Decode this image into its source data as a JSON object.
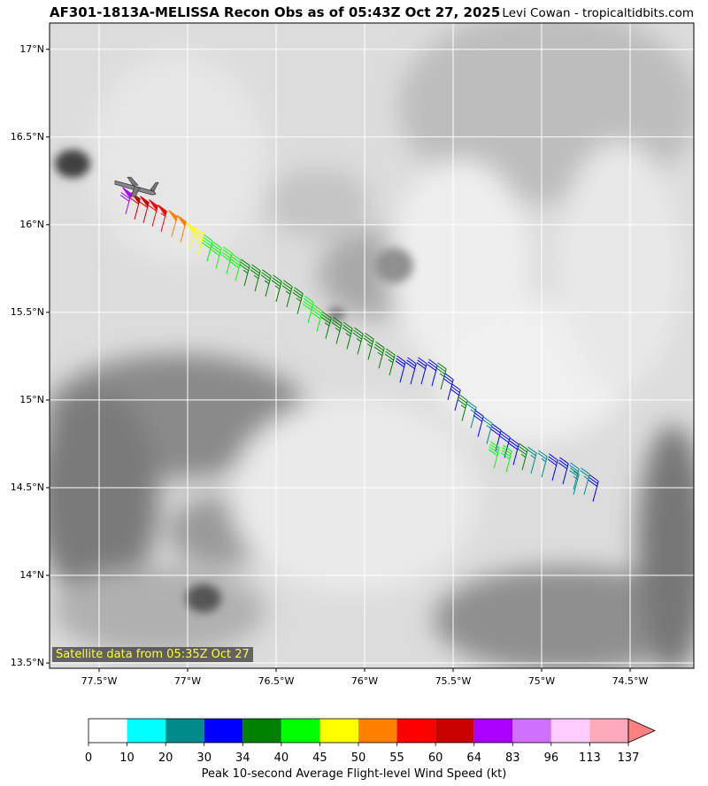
{
  "header": {
    "title": "AF301-1813A-MELISSA Recon Obs as of 05:43Z Oct 27, 2025",
    "credit": "Levi Cowan - tropicaltidbits.com"
  },
  "satellite_note": "Satellite data from 05:35Z Oct 27",
  "map": {
    "lat_range": [
      13.47,
      17.15
    ],
    "lon_range": [
      -77.78,
      -74.14
    ],
    "lat_ticks": [
      {
        "value": 17.0,
        "label": "17°N"
      },
      {
        "value": 16.5,
        "label": "16.5°N"
      },
      {
        "value": 16.0,
        "label": "16°N"
      },
      {
        "value": 15.5,
        "label": "15.5°N"
      },
      {
        "value": 15.0,
        "label": "15°N"
      },
      {
        "value": 14.5,
        "label": "14.5°N"
      },
      {
        "value": 14.0,
        "label": "14°N"
      },
      {
        "value": 13.5,
        "label": "13.5°N"
      }
    ],
    "lon_ticks": [
      {
        "value": -77.5,
        "label": "77.5°W"
      },
      {
        "value": -77.0,
        "label": "77°W"
      },
      {
        "value": -76.5,
        "label": "76.5°W"
      },
      {
        "value": -76.0,
        "label": "76°W"
      },
      {
        "value": -75.5,
        "label": "75.5°W"
      },
      {
        "value": -75.0,
        "label": "75°W"
      },
      {
        "value": -74.5,
        "label": "74.5°W"
      }
    ],
    "aircraft_icon": "airplane-icon",
    "aircraft_position": {
      "lon": -77.3,
      "lat": 16.22
    },
    "flight_track": [
      {
        "lon": -77.35,
        "lat": 16.06,
        "kt": 68
      },
      {
        "lon": -77.3,
        "lat": 16.03,
        "kt": 62
      },
      {
        "lon": -77.25,
        "lat": 16.01,
        "kt": 60
      },
      {
        "lon": -77.2,
        "lat": 15.99,
        "kt": 58
      },
      {
        "lon": -77.15,
        "lat": 15.96,
        "kt": 57
      },
      {
        "lon": -77.09,
        "lat": 15.93,
        "kt": 52
      },
      {
        "lon": -77.04,
        "lat": 15.9,
        "kt": 50
      },
      {
        "lon": -76.99,
        "lat": 15.86,
        "kt": 48
      },
      {
        "lon": -76.94,
        "lat": 15.83,
        "kt": 47
      },
      {
        "lon": -76.89,
        "lat": 15.79,
        "kt": 42
      },
      {
        "lon": -76.84,
        "lat": 15.75,
        "kt": 41
      },
      {
        "lon": -76.78,
        "lat": 15.72,
        "kt": 40
      },
      {
        "lon": -76.73,
        "lat": 15.68,
        "kt": 41
      },
      {
        "lon": -76.68,
        "lat": 15.65,
        "kt": 36
      },
      {
        "lon": -76.62,
        "lat": 15.62,
        "kt": 36
      },
      {
        "lon": -76.56,
        "lat": 15.59,
        "kt": 36
      },
      {
        "lon": -76.5,
        "lat": 15.56,
        "kt": 35
      },
      {
        "lon": -76.44,
        "lat": 15.53,
        "kt": 36
      },
      {
        "lon": -76.38,
        "lat": 15.49,
        "kt": 35
      },
      {
        "lon": -76.32,
        "lat": 15.44,
        "kt": 40
      },
      {
        "lon": -76.27,
        "lat": 15.39,
        "kt": 42
      },
      {
        "lon": -76.22,
        "lat": 15.35,
        "kt": 36
      },
      {
        "lon": -76.16,
        "lat": 15.32,
        "kt": 36
      },
      {
        "lon": -76.1,
        "lat": 15.29,
        "kt": 35
      },
      {
        "lon": -76.04,
        "lat": 15.26,
        "kt": 36
      },
      {
        "lon": -75.98,
        "lat": 15.23,
        "kt": 35
      },
      {
        "lon": -75.92,
        "lat": 15.18,
        "kt": 36
      },
      {
        "lon": -75.86,
        "lat": 15.14,
        "kt": 36
      },
      {
        "lon": -75.8,
        "lat": 15.1,
        "kt": 32
      },
      {
        "lon": -75.74,
        "lat": 15.09,
        "kt": 31
      },
      {
        "lon": -75.68,
        "lat": 15.09,
        "kt": 32
      },
      {
        "lon": -75.62,
        "lat": 15.08,
        "kt": 30
      },
      {
        "lon": -75.57,
        "lat": 15.06,
        "kt": 35
      },
      {
        "lon": -75.53,
        "lat": 15.0,
        "kt": 31
      },
      {
        "lon": -75.49,
        "lat": 14.94,
        "kt": 31
      },
      {
        "lon": -75.45,
        "lat": 14.88,
        "kt": 35
      },
      {
        "lon": -75.4,
        "lat": 14.84,
        "kt": 25
      },
      {
        "lon": -75.36,
        "lat": 14.79,
        "kt": 30
      },
      {
        "lon": -75.31,
        "lat": 14.75,
        "kt": 25
      },
      {
        "lon": -75.26,
        "lat": 14.71,
        "kt": 31
      },
      {
        "lon": -75.21,
        "lat": 14.67,
        "kt": 31
      },
      {
        "lon": -75.16,
        "lat": 14.63,
        "kt": 32
      },
      {
        "lon": -75.11,
        "lat": 14.6,
        "kt": 36
      },
      {
        "lon": -75.06,
        "lat": 14.58,
        "kt": 26
      },
      {
        "lon": -75.0,
        "lat": 14.56,
        "kt": 25
      },
      {
        "lon": -74.94,
        "lat": 14.54,
        "kt": 31
      },
      {
        "lon": -74.88,
        "lat": 14.52,
        "kt": 32
      },
      {
        "lon": -74.82,
        "lat": 14.49,
        "kt": 25
      },
      {
        "lon": -74.76,
        "lat": 14.46,
        "kt": 24
      },
      {
        "lon": -74.71,
        "lat": 14.42,
        "kt": 31
      },
      {
        "lon": -75.27,
        "lat": 14.61,
        "kt": 42
      },
      {
        "lon": -75.2,
        "lat": 14.59,
        "kt": 42
      },
      {
        "lon": -74.82,
        "lat": 14.46,
        "kt": 26
      }
    ]
  },
  "colorbar": {
    "label": "Peak 10-second Average Flight-level Wind Speed (kt)",
    "ticks": [
      "0",
      "10",
      "20",
      "30",
      "34",
      "40",
      "45",
      "50",
      "55",
      "60",
      "64",
      "83",
      "96",
      "113",
      "137"
    ],
    "colors": [
      "#ffffff",
      "#00ffff",
      "#008b8b",
      "#0000ff",
      "#008000",
      "#00ff00",
      "#ffff00",
      "#ff7f00",
      "#ff0000",
      "#c80000",
      "#aa00ff",
      "#d070ff",
      "#ffccff",
      "#ffaabb"
    ],
    "extend_color": "#ff8080"
  }
}
